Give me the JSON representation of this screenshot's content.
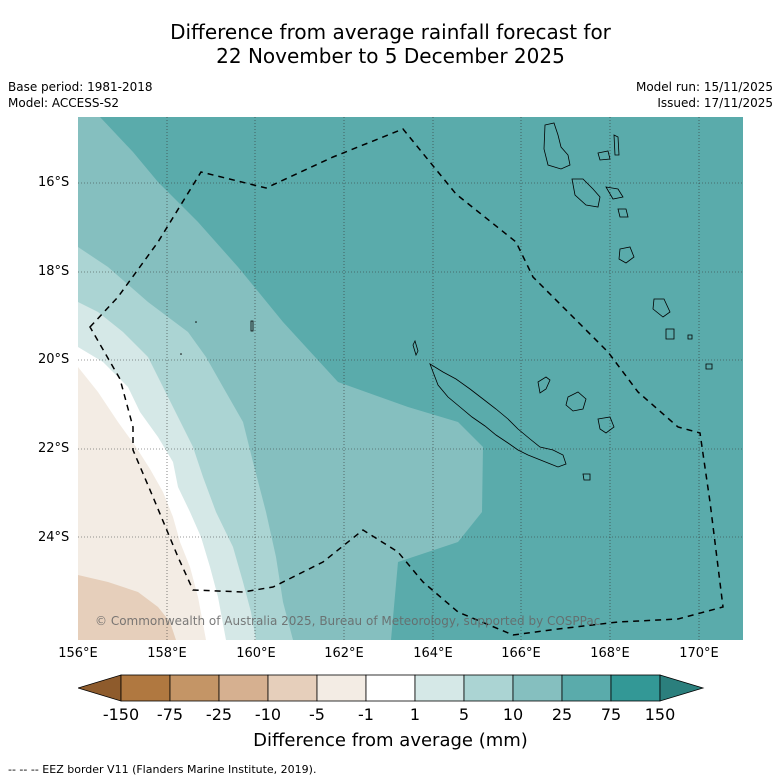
{
  "title": {
    "line1": "Difference from average rainfall forecast for",
    "line2": "22 November to 5 December 2025"
  },
  "meta": {
    "base_period": "Base period: 1981-2018",
    "model": "Model: ACCESS-S2",
    "model_run": "Model run: 15/11/2025",
    "issued": "Issued: 17/11/2025"
  },
  "axes": {
    "lat_labels": [
      "16°S",
      "18°S",
      "20°S",
      "22°S",
      "24°S"
    ],
    "lon_labels": [
      "156°E",
      "158°E",
      "160°E",
      "162°E",
      "164°E",
      "166°E",
      "168°E",
      "170°E"
    ]
  },
  "copyright": "© Commonwealth of Australia 2025, Bureau of Meteorology, supported by COSPPac",
  "legend": {
    "title": "Difference from average (mm)",
    "tick_labels": [
      "-150",
      "-75",
      "-25",
      "-10",
      "-5",
      "-1",
      "1",
      "5",
      "10",
      "25",
      "75",
      "150"
    ],
    "colors": [
      "#8e5b2c",
      "#b07840",
      "#c49566",
      "#d6b090",
      "#e6cfbb",
      "#f3ece4",
      "#ffffff",
      "#d5e8e7",
      "#abd4d3",
      "#85bfbf",
      "#5aabab",
      "#339896",
      "#2b7f7d"
    ]
  },
  "footnote": "--  --  -- EEZ border V11 (Flanders Marine Institute, 2019).",
  "colors": {
    "gridline": "#333333",
    "coast": "#000000",
    "eez": "#000000"
  }
}
